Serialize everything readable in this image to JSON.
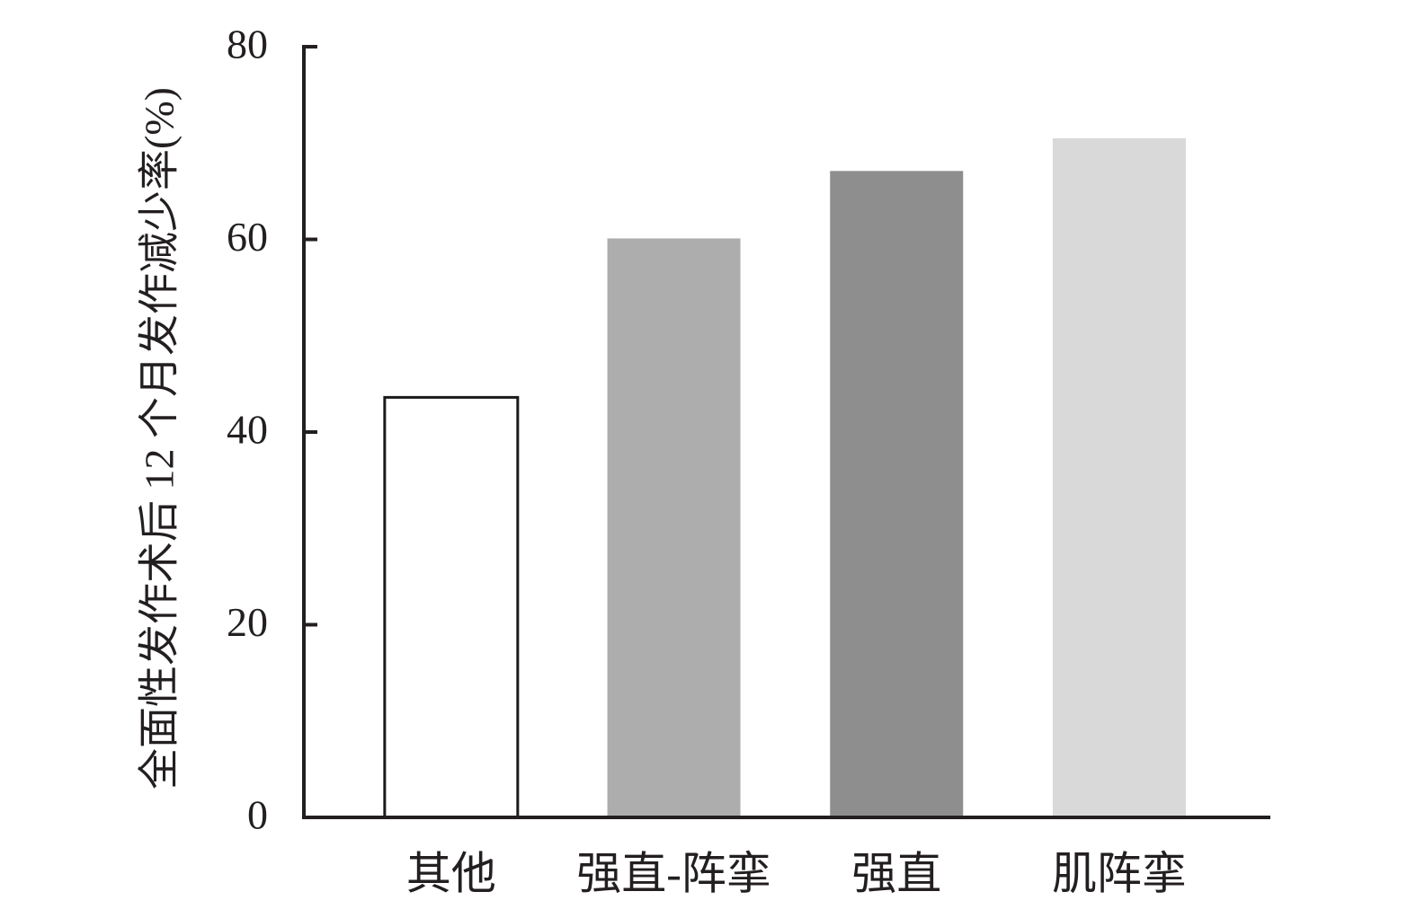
{
  "chart_data": {
    "type": "bar",
    "ylabel": "全面性发作术后 12 个月发作减少率(%)",
    "categories": [
      "其他",
      "强直-阵挛",
      "强直",
      "肌阵挛"
    ],
    "values": [
      43.6,
      60.1,
      67.1,
      70.5
    ],
    "colors": [
      "#ffffff",
      "#adadad",
      "#8f8e8e",
      "#d9d9d9"
    ],
    "edgecolors": [
      "#1a1a1a",
      "none",
      "none",
      "none"
    ],
    "ylim": [
      0,
      80
    ],
    "yticks": [
      0,
      20,
      40,
      60,
      80
    ],
    "grid": false
  }
}
